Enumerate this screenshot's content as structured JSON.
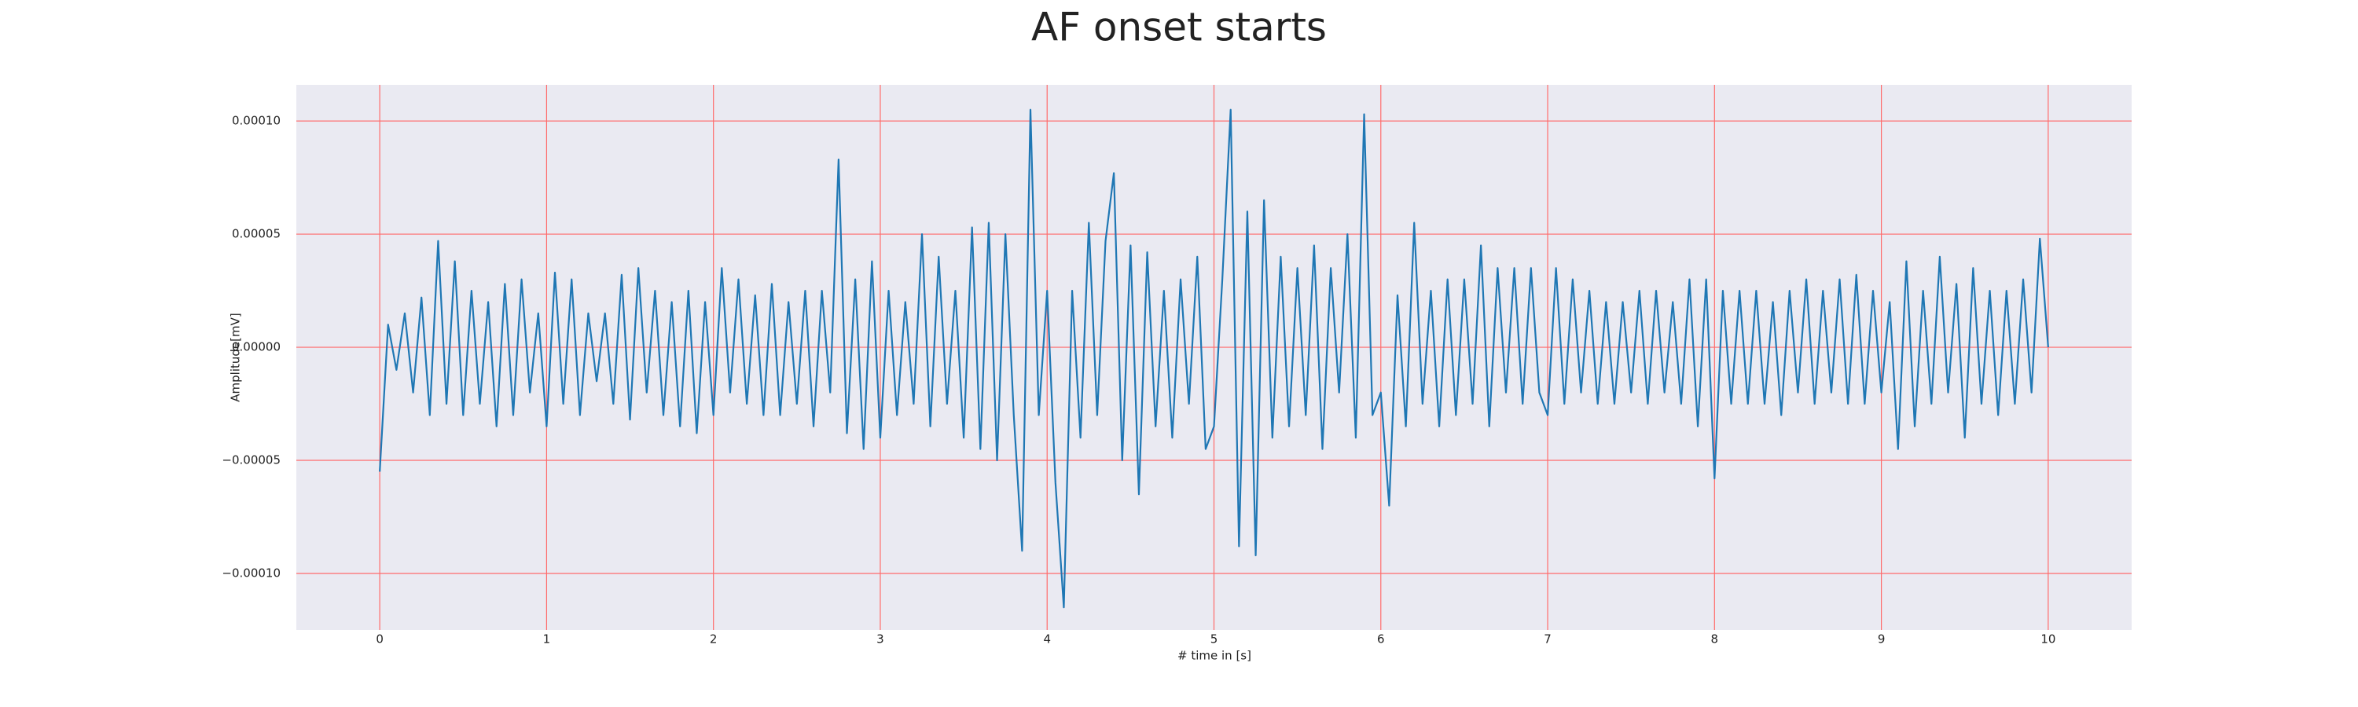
{
  "chart_data": {
    "type": "line",
    "title": "AF onset starts",
    "xlabel": "# time in [s]",
    "ylabel": "Amplitude[mV]",
    "xlim": [
      -0.5,
      10.5
    ],
    "ylim": [
      -0.000125,
      0.000116
    ],
    "xticks": [
      0,
      1,
      2,
      3,
      4,
      5,
      6,
      7,
      8,
      9,
      10
    ],
    "yticks": [
      {
        "value": -0.0001,
        "label": "−0.00010"
      },
      {
        "value": -5e-05,
        "label": "−0.00005"
      },
      {
        "value": 0,
        "label": "0.00000"
      },
      {
        "value": 5e-05,
        "label": "0.00005"
      },
      {
        "value": 0.0001,
        "label": "0.00010"
      }
    ],
    "grid": true,
    "grid_color": "#ff6b6b",
    "background": "#eaeaf2",
    "x": [
      0,
      0.05,
      0.1,
      0.15,
      0.2,
      0.25,
      0.3,
      0.35,
      0.4,
      0.45,
      0.5,
      0.55,
      0.6,
      0.65,
      0.7,
      0.75,
      0.8,
      0.85,
      0.9,
      0.95,
      1,
      1.05,
      1.1,
      1.15,
      1.2,
      1.25,
      1.3,
      1.35,
      1.4,
      1.45,
      1.5,
      1.55,
      1.6,
      1.65,
      1.7,
      1.75,
      1.8,
      1.85,
      1.9,
      1.95,
      2,
      2.05,
      2.1,
      2.15,
      2.2,
      2.25,
      2.3,
      2.35,
      2.4,
      2.45,
      2.5,
      2.55,
      2.6,
      2.65,
      2.7,
      2.75,
      2.8,
      2.85,
      2.9,
      2.95,
      3,
      3.05,
      3.1,
      3.15,
      3.2,
      3.25,
      3.3,
      3.35,
      3.4,
      3.45,
      3.5,
      3.55,
      3.6,
      3.65,
      3.7,
      3.75,
      3.8,
      3.85,
      3.9,
      3.95,
      4,
      4.05,
      4.1,
      4.15,
      4.2,
      4.25,
      4.3,
      4.35,
      4.4,
      4.45,
      4.5,
      4.55,
      4.6,
      4.65,
      4.7,
      4.75,
      4.8,
      4.85,
      4.9,
      4.95,
      5,
      5.05,
      5.1,
      5.15,
      5.2,
      5.25,
      5.3,
      5.35,
      5.4,
      5.45,
      5.5,
      5.55,
      5.6,
      5.65,
      5.7,
      5.75,
      5.8,
      5.85,
      5.9,
      5.95,
      6,
      6.05,
      6.1,
      6.15,
      6.2,
      6.25,
      6.3,
      6.35,
      6.4,
      6.45,
      6.5,
      6.55,
      6.6,
      6.65,
      6.7,
      6.75,
      6.8,
      6.85,
      6.9,
      6.95,
      7,
      7.05,
      7.1,
      7.15,
      7.2,
      7.25,
      7.3,
      7.35,
      7.4,
      7.45,
      7.5,
      7.55,
      7.6,
      7.65,
      7.7,
      7.75,
      7.8,
      7.85,
      7.9,
      7.95,
      8,
      8.05,
      8.1,
      8.15,
      8.2,
      8.25,
      8.3,
      8.35,
      8.4,
      8.45,
      8.5,
      8.55,
      8.6,
      8.65,
      8.7,
      8.75,
      8.8,
      8.85,
      8.9,
      8.95,
      9,
      9.05,
      9.1,
      9.15,
      9.2,
      9.25,
      9.3,
      9.35,
      9.4,
      9.45,
      9.5,
      9.55,
      9.6,
      9.65,
      9.7,
      9.75,
      9.8,
      9.85,
      9.9,
      9.95,
      10
    ],
    "series": [
      {
        "color": "#1f77b4",
        "values": [
          -5.5e-05,
          1e-05,
          -1e-05,
          1.5e-05,
          -2e-05,
          2.2e-05,
          -3e-05,
          4.7e-05,
          -2.5e-05,
          3.8e-05,
          -3e-05,
          2.5e-05,
          -2.5e-05,
          2e-05,
          -3.5e-05,
          2.8e-05,
          -3e-05,
          3e-05,
          -2e-05,
          1.5e-05,
          -3.5e-05,
          3.3e-05,
          -2.5e-05,
          3e-05,
          -3e-05,
          1.5e-05,
          -1.5e-05,
          1.5e-05,
          -2.5e-05,
          3.2e-05,
          -3.2e-05,
          3.5e-05,
          -2e-05,
          2.5e-05,
          -3e-05,
          2e-05,
          -3.5e-05,
          2.5e-05,
          -3.8e-05,
          2e-05,
          -3e-05,
          3.5e-05,
          -2e-05,
          3e-05,
          -2.5e-05,
          2.3e-05,
          -3e-05,
          2.8e-05,
          -3e-05,
          2e-05,
          -2.5e-05,
          2.5e-05,
          -3.5e-05,
          2.5e-05,
          -2e-05,
          8.3e-05,
          -3.8e-05,
          3e-05,
          -4.5e-05,
          3.8e-05,
          -4e-05,
          2.5e-05,
          -3e-05,
          2e-05,
          -2.5e-05,
          5e-05,
          -3.5e-05,
          4e-05,
          -2.5e-05,
          2.5e-05,
          -4e-05,
          5.3e-05,
          -4.5e-05,
          5.5e-05,
          -5e-05,
          5e-05,
          -3e-05,
          -9e-05,
          0.000105,
          -3e-05,
          2.5e-05,
          -6e-05,
          -0.000115,
          2.5e-05,
          -4e-05,
          5.5e-05,
          -3e-05,
          4.7e-05,
          7.7e-05,
          -5e-05,
          4.5e-05,
          -6.5e-05,
          4.2e-05,
          -3.5e-05,
          2.5e-05,
          -4e-05,
          3e-05,
          -2.5e-05,
          4e-05,
          -4.5e-05,
          -3.5e-05,
          3e-05,
          0.000105,
          -8.8e-05,
          6e-05,
          -9.2e-05,
          6.5e-05,
          -4e-05,
          4e-05,
          -3.5e-05,
          3.5e-05,
          -3e-05,
          4.5e-05,
          -4.5e-05,
          3.5e-05,
          -2e-05,
          5e-05,
          -4e-05,
          0.000103,
          -3e-05,
          -2e-05,
          -7e-05,
          2.3e-05,
          -3.5e-05,
          5.5e-05,
          -2.5e-05,
          2.5e-05,
          -3.5e-05,
          3e-05,
          -3e-05,
          3e-05,
          -2.5e-05,
          4.5e-05,
          -3.5e-05,
          3.5e-05,
          -2e-05,
          3.5e-05,
          -2.5e-05,
          3.5e-05,
          -2e-05,
          -3e-05,
          3.5e-05,
          -2.5e-05,
          3e-05,
          -2e-05,
          2.5e-05,
          -2.5e-05,
          2e-05,
          -2.5e-05,
          2e-05,
          -2e-05,
          2.5e-05,
          -2.5e-05,
          2.5e-05,
          -2e-05,
          2e-05,
          -2.5e-05,
          3e-05,
          -3.5e-05,
          3e-05,
          -5.8e-05,
          2.5e-05,
          -2.5e-05,
          2.5e-05,
          -2.5e-05,
          2.5e-05,
          -2.5e-05,
          2e-05,
          -3e-05,
          2.5e-05,
          -2e-05,
          3e-05,
          -2.5e-05,
          2.5e-05,
          -2e-05,
          3e-05,
          -2.5e-05,
          3.2e-05,
          -2.5e-05,
          2.5e-05,
          -2e-05,
          2e-05,
          -4.5e-05,
          3.8e-05,
          -3.5e-05,
          2.5e-05,
          -2.5e-05,
          4e-05,
          -2e-05,
          2.8e-05,
          -4e-05,
          3.5e-05,
          -2.5e-05,
          2.5e-05,
          -3e-05,
          2.5e-05,
          -2.5e-05,
          3e-05,
          -2e-05,
          4.8e-05,
          0
        ]
      }
    ]
  }
}
